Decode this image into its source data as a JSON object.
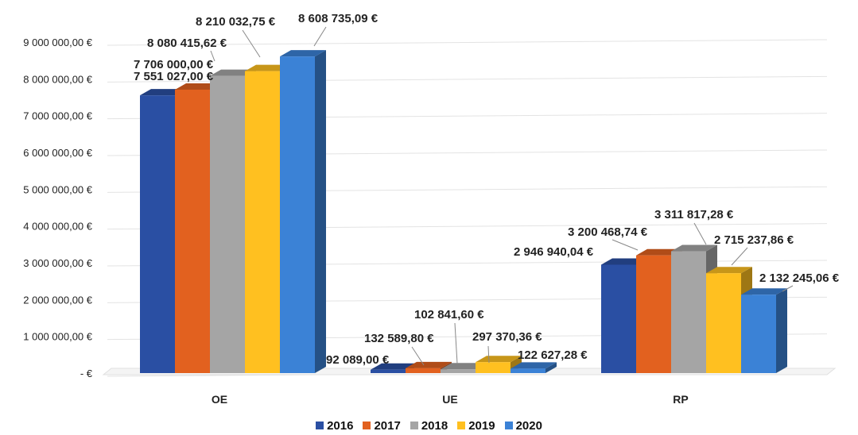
{
  "chart_data": {
    "type": "bar",
    "categories": [
      "OE",
      "UE",
      "RP"
    ],
    "series": [
      {
        "name": "2016",
        "color": "#2a4fa3",
        "values": [
          7551027.0,
          92089.0,
          2946940.04
        ],
        "labels": [
          "7 551 027,00 €",
          "92 089,00 €",
          "2 946 940,04 €"
        ]
      },
      {
        "name": "2017",
        "color": "#e2611f",
        "values": [
          7706000.0,
          132589.8,
          3200468.74
        ],
        "labels": [
          "7 706 000,00 €",
          "132 589,80 €",
          "3 200 468,74 €"
        ]
      },
      {
        "name": "2018",
        "color": "#a5a5a5",
        "values": [
          8080415.62,
          102841.6,
          3311817.28
        ],
        "labels": [
          "8 080 415,62 €",
          "102 841,60 €",
          "3 311 817,28 €"
        ]
      },
      {
        "name": "2019",
        "color": "#ffc020",
        "values": [
          8210032.75,
          297370.36,
          2715237.86
        ],
        "labels": [
          "8 210 032,75 €",
          "297 370,36 €",
          "2 715 237,86 €"
        ]
      },
      {
        "name": "2020",
        "color": "#3b82d6",
        "values": [
          8608735.09,
          122627.28,
          2132245.06
        ],
        "labels": [
          "8 608 735,09 €",
          "122 627,28 €",
          "2 132 245,06 €"
        ]
      }
    ],
    "yticks": [
      {
        "value": 0,
        "label": "-   €"
      },
      {
        "value": 1000000,
        "label": "1 000 000,00 €"
      },
      {
        "value": 2000000,
        "label": "2 000 000,00 €"
      },
      {
        "value": 3000000,
        "label": "3 000 000,00 €"
      },
      {
        "value": 4000000,
        "label": "4 000 000,00 €"
      },
      {
        "value": 5000000,
        "label": "5 000 000,00 €"
      },
      {
        "value": 6000000,
        "label": "6 000 000,00 €"
      },
      {
        "value": 7000000,
        "label": "7 000 000,00 €"
      },
      {
        "value": 8000000,
        "label": "8 000 000,00 €"
      },
      {
        "value": 9000000,
        "label": "9 000 000,00 €"
      }
    ],
    "ylim": [
      0,
      9000000
    ],
    "grid": true,
    "legend_position": "bottom",
    "style": "3d-clustered-column"
  }
}
